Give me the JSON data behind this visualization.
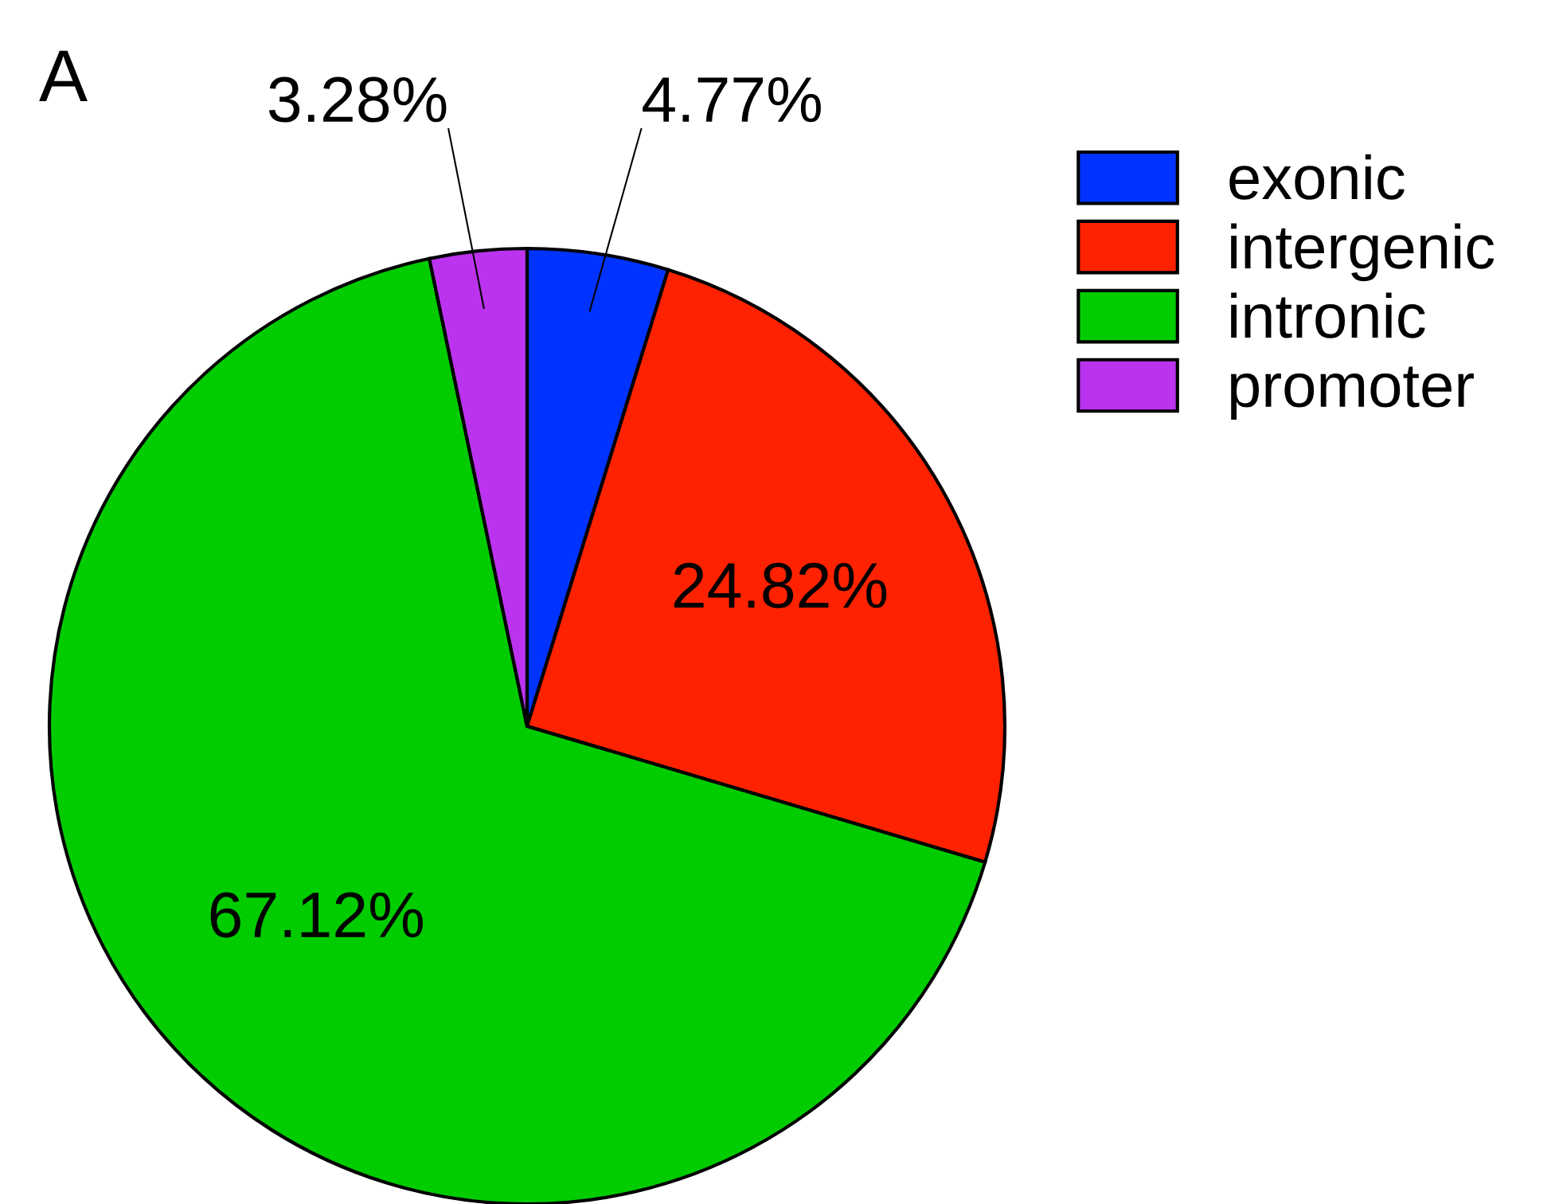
{
  "chart_data": {
    "type": "pie",
    "categories": [
      "exonic",
      "intergenic",
      "intronic",
      "promoter"
    ],
    "values": [
      4.77,
      24.82,
      67.12,
      3.28
    ],
    "colors": [
      "#0033ff",
      "#ff2200",
      "#00cc00",
      "#bb33ee"
    ],
    "value_labels": [
      "4.77%",
      "24.82%",
      "67.12%",
      "3.28%"
    ],
    "annotations": [
      "A"
    ],
    "legend": "top right"
  }
}
